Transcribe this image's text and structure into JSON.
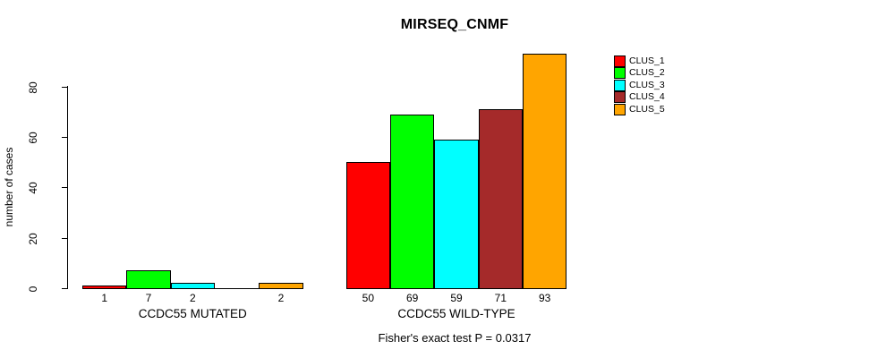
{
  "title": "MIRSEQ_CNMF",
  "chart_data": {
    "type": "bar",
    "title": "MIRSEQ_CNMF",
    "ylabel": "number of cases",
    "ylim": [
      0,
      95
    ],
    "yticks": [
      0,
      20,
      40,
      60,
      80
    ],
    "grid": false,
    "legend_position": "right",
    "clusters": [
      {
        "name": "CLUS_1",
        "color": "#FF0000"
      },
      {
        "name": "CLUS_2",
        "color": "#00FF00"
      },
      {
        "name": "CLUS_3",
        "color": "#00FFFF"
      },
      {
        "name": "CLUS_4",
        "color": "#A52A2A"
      },
      {
        "name": "CLUS_5",
        "color": "#FFA500"
      }
    ],
    "groups": [
      {
        "label": "CCDC55 MUTATED",
        "values": [
          1,
          7,
          2,
          0,
          2
        ],
        "bar_labels": [
          "1",
          "7",
          "2",
          "",
          "2"
        ]
      },
      {
        "label": "CCDC55 WILD-TYPE",
        "values": [
          50,
          69,
          59,
          71,
          93
        ],
        "bar_labels": [
          "50",
          "69",
          "59",
          "71",
          "93"
        ]
      }
    ],
    "footnote": "Fisher's exact test P = 0.0317"
  },
  "colors": {
    "background": "#FFFFFF",
    "axis": "#000000",
    "bar_border": "#000000",
    "text": "#000000"
  }
}
